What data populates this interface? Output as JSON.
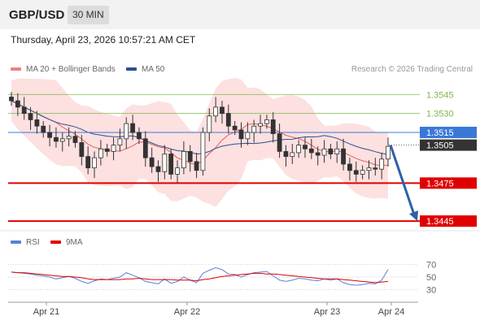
{
  "header": {
    "pair": "GBP/USD",
    "timeframe": "30 MIN"
  },
  "timestamp": "Thursday, April 23, 2026 10:57:21 AM CET",
  "legend_main": [
    {
      "label": "MA 20 + Bollinger Bands",
      "color": "#f08080"
    },
    {
      "label": "MA 50",
      "color": "#2f4f8f"
    }
  ],
  "credit": "Research © 2026 Trading Central",
  "legend_rsi": [
    {
      "label": "RSI",
      "color": "#5b7fd6"
    },
    {
      "label": "9MA",
      "color": "#e00000"
    }
  ],
  "colors": {
    "resistance": "#7fb84a",
    "support": "#e00000",
    "ma50": "#2f4f8f",
    "band": "#fde0e0",
    "ma20": "#e06060",
    "candle": "#333333",
    "arrow": "#2f5fa8",
    "current": "#333333",
    "pivot": "#3a78d8"
  },
  "chart_data": {
    "type": "candlestick",
    "ylim": [
      1.3438,
      1.3558
    ],
    "levels": [
      {
        "label": "1.3545",
        "value": 1.3545,
        "kind": "resistance"
      },
      {
        "label": "1.3530",
        "value": 1.353,
        "kind": "resistance"
      },
      {
        "label": "1.3515",
        "value": 1.3515,
        "kind": "pivot"
      },
      {
        "label": "1.3505",
        "value": 1.3505,
        "kind": "current"
      },
      {
        "label": "1.3475",
        "value": 1.3475,
        "kind": "support"
      },
      {
        "label": "1.3445",
        "value": 1.3445,
        "kind": "support"
      }
    ],
    "closes": [
      1.354,
      1.3535,
      1.353,
      1.3525,
      1.352,
      1.3515,
      1.3511,
      1.3508,
      1.351,
      1.3512,
      1.3507,
      1.3496,
      1.3487,
      1.3495,
      1.3502,
      1.35,
      1.3505,
      1.351,
      1.3522,
      1.3515,
      1.351,
      1.3495,
      1.3488,
      1.3484,
      1.3498,
      1.3482,
      1.3487,
      1.35,
      1.3492,
      1.3485,
      1.3515,
      1.3528,
      1.3535,
      1.353,
      1.352,
      1.3517,
      1.351,
      1.3515,
      1.352,
      1.3522,
      1.3525,
      1.3514,
      1.35,
      1.3496,
      1.3499,
      1.3505,
      1.3502,
      1.3499,
      1.3497,
      1.3502,
      1.3498,
      1.3502,
      1.349,
      1.3485,
      1.3482,
      1.3485,
      1.3487,
      1.3486,
      1.3494,
      1.3504
    ],
    "x_ticks": [
      "Apr 21",
      "Apr 22",
      "Apr 23",
      "Apr 24"
    ],
    "projection": {
      "from": 1.3505,
      "to": 1.3445
    },
    "rsi": {
      "ylim": [
        20,
        80
      ],
      "ticks": [
        70,
        50,
        30
      ],
      "rsi": [
        58,
        57,
        56,
        55,
        53,
        52,
        50,
        47,
        49,
        51,
        48,
        43,
        40,
        44,
        47,
        46,
        48,
        50,
        57,
        53,
        49,
        43,
        41,
        39,
        47,
        40,
        43,
        50,
        45,
        41,
        56,
        61,
        65,
        62,
        55,
        54,
        50,
        54,
        57,
        58,
        59,
        52,
        45,
        43,
        45,
        48,
        47,
        45,
        44,
        47,
        45,
        47,
        41,
        38,
        37,
        38,
        40,
        39,
        45,
        62
      ],
      "ma9": [
        58,
        57,
        57,
        56,
        55,
        54,
        53,
        52,
        51,
        51,
        50,
        49,
        47,
        46,
        46,
        46,
        46,
        46,
        47,
        47,
        48,
        47,
        46,
        46,
        46,
        46,
        45,
        45,
        45,
        44,
        46,
        47,
        49,
        51,
        52,
        53,
        54,
        55,
        56,
        56,
        55,
        55,
        54,
        53,
        52,
        51,
        50,
        49,
        48,
        47,
        47,
        47,
        46,
        45,
        44,
        43,
        42,
        41,
        42,
        43
      ]
    }
  }
}
